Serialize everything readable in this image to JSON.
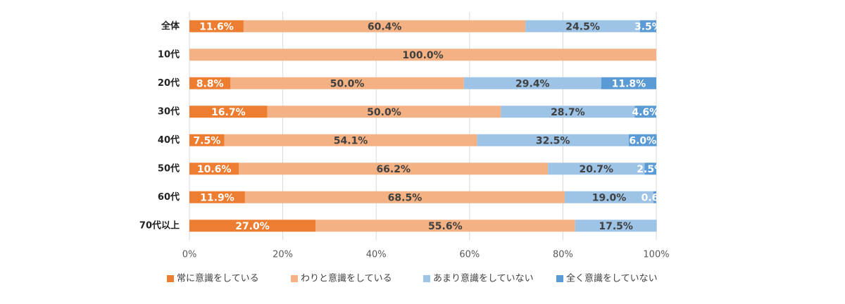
{
  "chart_data": {
    "type": "stacked-bar-horizontal",
    "categories": [
      "全体",
      "10代",
      "20代",
      "30代",
      "40代",
      "50代",
      "60代",
      "70代以上"
    ],
    "series": [
      {
        "name": "常に意識をしている",
        "color": "#ed7d31",
        "values": [
          11.6,
          null,
          8.8,
          16.7,
          7.5,
          10.6,
          11.9,
          27.0
        ],
        "value_labels": [
          "11.6%",
          null,
          "8.8%",
          "16.7%",
          "7.5%",
          "10.6%",
          "11.9%",
          "27.0%"
        ]
      },
      {
        "name": "わりと意識をしている",
        "color": "#f4b183",
        "values": [
          60.4,
          100.0,
          50.0,
          50.0,
          54.1,
          66.2,
          68.5,
          55.6
        ],
        "value_labels": [
          "60.4%",
          "100.0%",
          "50.0%",
          "50.0%",
          "54.1%",
          "66.2%",
          "68.5%",
          "55.6%"
        ]
      },
      {
        "name": "あまり意識をしていない",
        "color": "#9dc3e6",
        "values": [
          24.5,
          null,
          29.4,
          28.7,
          32.5,
          20.7,
          19.0,
          17.5
        ],
        "value_labels": [
          "24.5%",
          null,
          "29.4%",
          "28.7%",
          "32.5%",
          "20.7%",
          "19.0%",
          "17.5%"
        ]
      },
      {
        "name": "全く意識をしていない",
        "color": "#5b9bd5",
        "values": [
          3.5,
          null,
          11.8,
          4.6,
          6.0,
          2.5,
          0.6,
          null
        ],
        "value_labels": [
          "3.5%",
          null,
          "11.8%",
          "4.6%",
          "6.0%",
          "2.5%",
          "0.6%",
          null
        ]
      }
    ],
    "xlim": [
      0,
      100
    ],
    "xticks": [
      {
        "value": 0,
        "label": "0%"
      },
      {
        "value": 20,
        "label": "20%"
      },
      {
        "value": 40,
        "label": "40%"
      },
      {
        "value": 60,
        "label": "60%"
      },
      {
        "value": 80,
        "label": "80%"
      },
      {
        "value": 100,
        "label": "100%"
      }
    ],
    "grid": true,
    "legend": "bottom"
  }
}
